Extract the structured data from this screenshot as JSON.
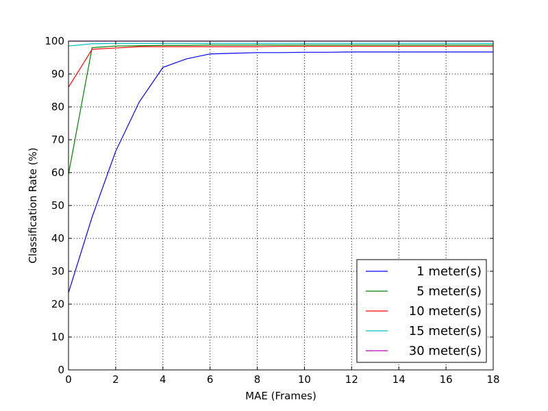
{
  "chart_data": {
    "type": "line",
    "title": "",
    "xlabel": "MAE (Frames)",
    "ylabel": "Classification Rate (%)",
    "xlim": [
      0,
      18
    ],
    "ylim": [
      0,
      100
    ],
    "x_ticks": [
      "0",
      "2",
      "4",
      "6",
      "8",
      "10",
      "12",
      "14",
      "16",
      "18"
    ],
    "y_ticks": [
      "0",
      "10",
      "20",
      "30",
      "40",
      "50",
      "60",
      "70",
      "80",
      "90",
      "100"
    ],
    "grid": true,
    "grid_style": "dotted",
    "legend_position": "lower-right",
    "x": [
      0,
      1,
      2,
      3,
      4,
      5,
      6,
      7,
      8,
      9,
      10,
      11,
      12,
      13,
      14,
      15,
      16,
      17,
      18
    ],
    "series": [
      {
        "name": "1 meter(s)",
        "color": "#0000ff",
        "values": [
          23.5,
          46.5,
          66.5,
          81.5,
          92,
          94.6,
          96.1,
          96.3,
          96.5,
          96.5,
          96.6,
          96.6,
          96.7,
          96.7,
          96.7,
          96.7,
          96.7,
          96.7,
          96.7
        ]
      },
      {
        "name": "5 meter(s)",
        "color": "#008000",
        "values": [
          59.5,
          98.0,
          98.5,
          98.6,
          98.7,
          98.7,
          98.8,
          98.8,
          98.8,
          98.8,
          98.8,
          98.8,
          98.8,
          98.8,
          98.8,
          98.8,
          98.8,
          98.8,
          98.8
        ]
      },
      {
        "name": "10 meter(s)",
        "color": "#ff0000",
        "values": [
          86.0,
          97.5,
          97.9,
          98.3,
          98.3,
          98.3,
          98.3,
          98.3,
          98.3,
          98.4,
          98.4,
          98.4,
          98.4,
          98.4,
          98.4,
          98.4,
          98.4,
          98.4,
          98.4
        ]
      },
      {
        "name": "15 meter(s)",
        "color": "#00bfbf",
        "values": [
          98.5,
          99.2,
          99.3,
          99.3,
          99.3,
          99.3,
          99.3,
          99.3,
          99.3,
          99.3,
          99.3,
          99.3,
          99.3,
          99.3,
          99.3,
          99.3,
          99.3,
          99.3,
          99.3
        ]
      },
      {
        "name": "30 meter(s)",
        "color": "#bf00bf",
        "values": [
          100,
          100,
          100,
          100,
          100,
          100,
          100,
          100,
          100,
          100,
          100,
          100,
          100,
          100,
          100,
          100,
          100,
          100,
          100
        ]
      }
    ]
  }
}
